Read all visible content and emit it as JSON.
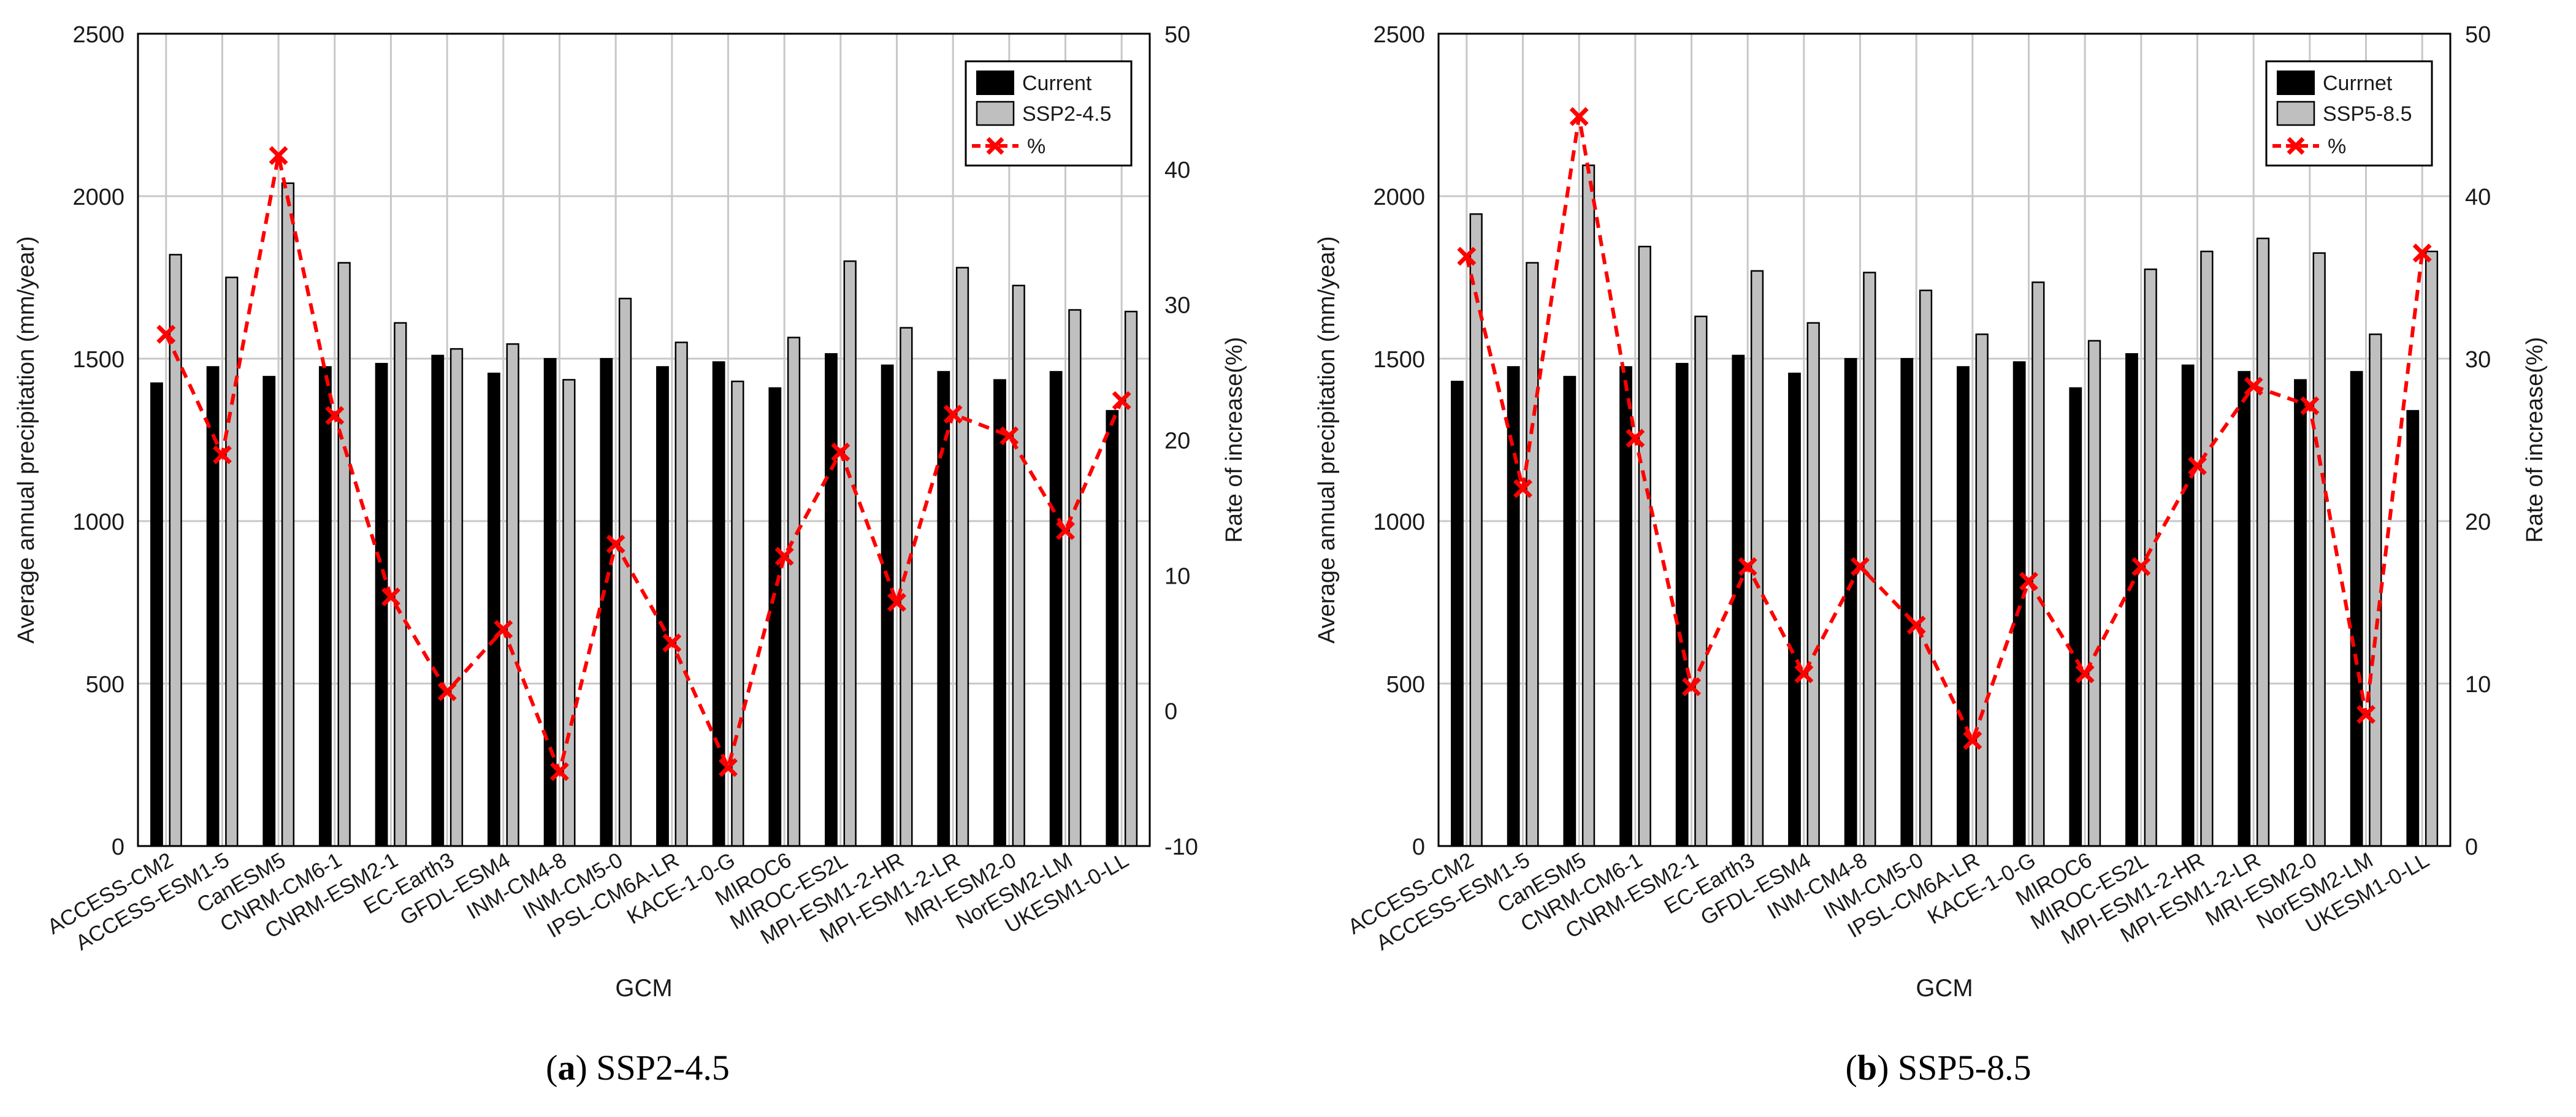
{
  "colors": {
    "current": "#000000",
    "future": "#bfbfbf",
    "line": "#ff0000",
    "grid": "#c8c8c8"
  },
  "chart_data": [
    {
      "type": "bar",
      "caption_letter": "a",
      "caption_text": "SSP2-4.5",
      "xlabel": "GCM",
      "ylabel": "Average annual precipitation (mm/year)",
      "y2label": "Rate of increase(%)",
      "ylim": [
        0,
        2500
      ],
      "yticks": [
        "0",
        "500",
        "1000",
        "1500",
        "2000",
        "2500"
      ],
      "y2lim": [
        -10,
        50
      ],
      "y2ticks": [
        "-10",
        "0",
        "10",
        "20",
        "30",
        "40",
        "50"
      ],
      "grid": true,
      "legend_position": "top-right",
      "categories": [
        "ACCESS-CM2",
        "ACCESS-ESM1-5",
        "CanESM5",
        "CNRM-CM6-1",
        "CNRM-ESM2-1",
        "EC-Earth3",
        "GFDL-ESM4",
        "INM-CM4-8",
        "INM-CM5-0",
        "IPSL-CM6A-LR",
        "KACE-1-0-G",
        "MIROC6",
        "MIROC-ES2L",
        "MPI-ESM1-2-HR",
        "MPI-ESM1-2-LR",
        "MRI-ESM2-0",
        "NorESM2-LM",
        "UKESM1-0-LL"
      ],
      "series": [
        {
          "name": "Current",
          "kind": "bar",
          "axis": "left",
          "values": [
            1425,
            1475,
            1445,
            1475,
            1485,
            1510,
            1455,
            1500,
            1500,
            1475,
            1490,
            1410,
            1515,
            1480,
            1460,
            1435,
            1460,
            1340
          ]
        },
        {
          "name": "SSP2-4.5",
          "kind": "bar",
          "axis": "left",
          "values": [
            1820,
            1750,
            2040,
            1795,
            1610,
            1530,
            1545,
            1435,
            1685,
            1550,
            1430,
            1565,
            1800,
            1595,
            1780,
            1725,
            1650,
            1645
          ]
        },
        {
          "name": "%",
          "kind": "line",
          "axis": "right",
          "values": [
            27.8,
            18.9,
            41.0,
            21.8,
            8.4,
            1.4,
            6.0,
            -4.5,
            12.3,
            5.0,
            -4.2,
            11.4,
            19.1,
            8.0,
            21.9,
            20.3,
            13.3,
            22.9
          ]
        }
      ]
    },
    {
      "type": "bar",
      "caption_letter": "b",
      "caption_text": "SSP5-8.5",
      "xlabel": "GCM",
      "ylabel": "Average annual precipitation (mm/year)",
      "y2label": "Rate of increase(%)",
      "ylim": [
        0,
        2500
      ],
      "yticks": [
        "0",
        "500",
        "1000",
        "1500",
        "2000",
        "2500"
      ],
      "y2lim": [
        0,
        50
      ],
      "y2ticks": [
        "0",
        "10",
        "20",
        "30",
        "40",
        "50"
      ],
      "grid": true,
      "legend_position": "top-right",
      "categories": [
        "ACCESS-CM2",
        "ACCESS-ESM1-5",
        "CanESM5",
        "CNRM-CM6-1",
        "CNRM-ESM2-1",
        "EC-Earth3",
        "GFDL-ESM4",
        "INM-CM4-8",
        "INM-CM5-0",
        "IPSL-CM6A-LR",
        "KACE-1-0-G",
        "MIROC6",
        "MIROC-ES2L",
        "MPI-ESM1-2-HR",
        "MPI-ESM1-2-LR",
        "MRI-ESM2-0",
        "NorESM2-LM",
        "UKESM1-0-LL"
      ],
      "series": [
        {
          "name": "Currnet",
          "kind": "bar",
          "axis": "left",
          "values": [
            1430,
            1475,
            1445,
            1475,
            1485,
            1510,
            1455,
            1500,
            1500,
            1475,
            1490,
            1410,
            1515,
            1480,
            1460,
            1435,
            1460,
            1340
          ]
        },
        {
          "name": "SSP5-8.5",
          "kind": "bar",
          "axis": "left",
          "values": [
            1945,
            1795,
            2095,
            1845,
            1630,
            1770,
            1610,
            1765,
            1710,
            1575,
            1735,
            1555,
            1775,
            1830,
            1870,
            1825,
            1575,
            1830
          ]
        },
        {
          "name": "%",
          "kind": "line",
          "axis": "right",
          "values": [
            36.3,
            22.0,
            44.9,
            25.1,
            9.8,
            17.2,
            10.6,
            17.2,
            13.6,
            6.5,
            16.3,
            10.6,
            17.2,
            23.4,
            28.3,
            27.1,
            8.1,
            36.5
          ]
        }
      ]
    }
  ]
}
